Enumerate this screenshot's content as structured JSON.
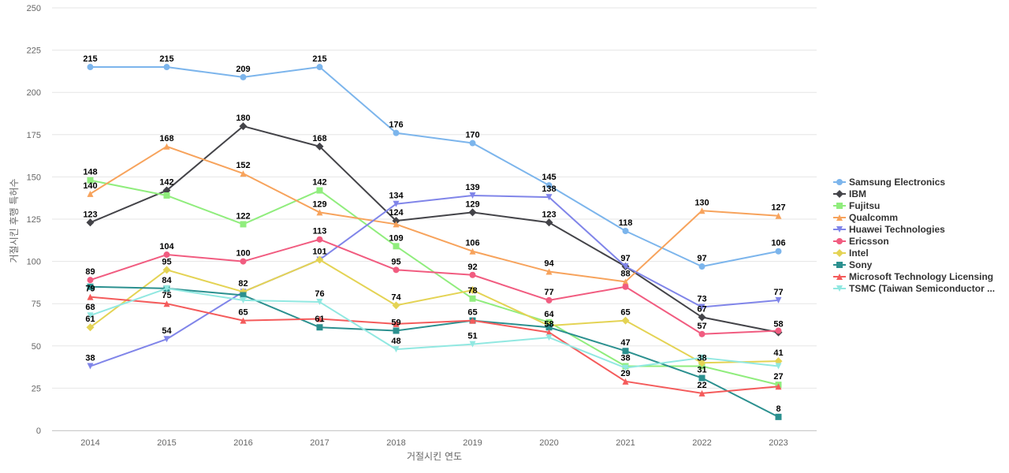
{
  "chart_data": {
    "type": "line",
    "title": "",
    "xlabel": "거절시킨 연도",
    "ylabel": "거절시킨 후행 특허수",
    "x": [
      "2014",
      "2015",
      "2016",
      "2017",
      "2018",
      "2019",
      "2020",
      "2021",
      "2022",
      "2023"
    ],
    "ylim": [
      0,
      250
    ],
    "yticks": [
      0,
      25,
      50,
      75,
      100,
      125,
      150,
      175,
      200,
      225,
      250
    ],
    "grid": true,
    "legend_position": "right",
    "series": [
      {
        "name": "Samsung Electronics",
        "color": "#7cb5ec",
        "marker": "circle",
        "values": [
          215,
          215,
          209,
          215,
          176,
          170,
          145,
          118,
          97,
          106
        ]
      },
      {
        "name": "IBM",
        "color": "#434348",
        "marker": "diamond",
        "values": [
          123,
          142,
          180,
          168,
          124,
          129,
          123,
          97,
          67,
          58
        ]
      },
      {
        "name": "Fujitsu",
        "color": "#90ed7d",
        "marker": "square",
        "values": [
          148,
          139,
          122,
          142,
          109,
          78,
          64,
          38,
          38,
          27
        ]
      },
      {
        "name": "Qualcomm",
        "color": "#f7a35c",
        "marker": "triangle",
        "values": [
          140,
          168,
          152,
          129,
          122,
          106,
          94,
          88,
          130,
          127
        ]
      },
      {
        "name": "Huawei Technologies",
        "color": "#8085e9",
        "marker": "triangle-down",
        "values": [
          38,
          54,
          82,
          101,
          134,
          139,
          138,
          97,
          73,
          77
        ]
      },
      {
        "name": "Ericsson",
        "color": "#f15c80",
        "marker": "circle",
        "values": [
          89,
          104,
          100,
          113,
          95,
          92,
          77,
          85,
          57,
          59
        ]
      },
      {
        "name": "Intel",
        "color": "#e4d354",
        "marker": "diamond",
        "values": [
          61,
          95,
          82,
          101,
          74,
          83,
          62,
          65,
          40,
          41
        ]
      },
      {
        "name": "Sony",
        "color": "#2b908f",
        "marker": "square",
        "values": [
          85,
          84,
          80,
          61,
          59,
          65,
          61,
          47,
          31,
          8
        ]
      },
      {
        "name": "Microsoft Technology Licensing",
        "color": "#f45b5b",
        "marker": "triangle",
        "values": [
          79,
          75,
          65,
          66,
          63,
          65,
          58,
          29,
          22,
          26
        ]
      },
      {
        "name": "TSMC (Taiwan Semiconductor ...",
        "color": "#91e8e1",
        "marker": "triangle-down",
        "values": [
          68,
          84,
          77,
          76,
          48,
          51,
          55,
          37,
          43,
          38
        ]
      }
    ],
    "data_labels": [
      {
        "x": "2014",
        "y": 215,
        "text": "215"
      },
      {
        "x": "2015",
        "y": 215,
        "text": "215"
      },
      {
        "x": "2016",
        "y": 209,
        "text": "209"
      },
      {
        "x": "2017",
        "y": 215,
        "text": "215"
      },
      {
        "x": "2018",
        "y": 176,
        "text": "176"
      },
      {
        "x": "2019",
        "y": 170,
        "text": "170"
      },
      {
        "x": "2020",
        "y": 145,
        "text": "145"
      },
      {
        "x": "2021",
        "y": 118,
        "text": "118"
      },
      {
        "x": "2022",
        "y": 97,
        "text": "97"
      },
      {
        "x": "2023",
        "y": 106,
        "text": "106"
      },
      {
        "x": "2014",
        "y": 148,
        "text": "148"
      },
      {
        "x": "2014",
        "y": 140,
        "text": "140"
      },
      {
        "x": "2014",
        "y": 123,
        "text": "123"
      },
      {
        "x": "2014",
        "y": 89,
        "text": "89"
      },
      {
        "x": "2014",
        "y": 79,
        "text": "79"
      },
      {
        "x": "2014",
        "y": 68,
        "text": "68"
      },
      {
        "x": "2014",
        "y": 61,
        "text": "61"
      },
      {
        "x": "2014",
        "y": 38,
        "text": "38"
      },
      {
        "x": "2015",
        "y": 168,
        "text": "168"
      },
      {
        "x": "2015",
        "y": 142,
        "text": "142"
      },
      {
        "x": "2015",
        "y": 104,
        "text": "104"
      },
      {
        "x": "2015",
        "y": 95,
        "text": "95"
      },
      {
        "x": "2015",
        "y": 84,
        "text": "84"
      },
      {
        "x": "2015",
        "y": 75,
        "text": "75"
      },
      {
        "x": "2015",
        "y": 54,
        "text": "54"
      },
      {
        "x": "2016",
        "y": 180,
        "text": "180"
      },
      {
        "x": "2016",
        "y": 152,
        "text": "152"
      },
      {
        "x": "2016",
        "y": 122,
        "text": "122"
      },
      {
        "x": "2016",
        "y": 100,
        "text": "100"
      },
      {
        "x": "2016",
        "y": 82,
        "text": "82"
      },
      {
        "x": "2016",
        "y": 65,
        "text": "65"
      },
      {
        "x": "2017",
        "y": 168,
        "text": "168"
      },
      {
        "x": "2017",
        "y": 142,
        "text": "142"
      },
      {
        "x": "2017",
        "y": 129,
        "text": "129"
      },
      {
        "x": "2017",
        "y": 113,
        "text": "113"
      },
      {
        "x": "2017",
        "y": 101,
        "text": "101"
      },
      {
        "x": "2017",
        "y": 76,
        "text": "76"
      },
      {
        "x": "2017",
        "y": 61,
        "text": "61"
      },
      {
        "x": "2018",
        "y": 134,
        "text": "134"
      },
      {
        "x": "2018",
        "y": 124,
        "text": "124"
      },
      {
        "x": "2018",
        "y": 109,
        "text": "109"
      },
      {
        "x": "2018",
        "y": 95,
        "text": "95"
      },
      {
        "x": "2018",
        "y": 74,
        "text": "74"
      },
      {
        "x": "2018",
        "y": 59,
        "text": "59"
      },
      {
        "x": "2018",
        "y": 48,
        "text": "48"
      },
      {
        "x": "2019",
        "y": 139,
        "text": "139"
      },
      {
        "x": "2019",
        "y": 129,
        "text": "129"
      },
      {
        "x": "2019",
        "y": 106,
        "text": "106"
      },
      {
        "x": "2019",
        "y": 92,
        "text": "92"
      },
      {
        "x": "2019",
        "y": 78,
        "text": "78"
      },
      {
        "x": "2019",
        "y": 65,
        "text": "65"
      },
      {
        "x": "2019",
        "y": 51,
        "text": "51"
      },
      {
        "x": "2020",
        "y": 138,
        "text": "138"
      },
      {
        "x": "2020",
        "y": 123,
        "text": "123"
      },
      {
        "x": "2020",
        "y": 94,
        "text": "94"
      },
      {
        "x": "2020",
        "y": 77,
        "text": "77"
      },
      {
        "x": "2020",
        "y": 64,
        "text": "64"
      },
      {
        "x": "2020",
        "y": 58,
        "text": "58"
      },
      {
        "x": "2021",
        "y": 97,
        "text": "97"
      },
      {
        "x": "2021",
        "y": 88,
        "text": "88"
      },
      {
        "x": "2021",
        "y": 65,
        "text": "65"
      },
      {
        "x": "2021",
        "y": 47,
        "text": "47"
      },
      {
        "x": "2021",
        "y": 38,
        "text": "38"
      },
      {
        "x": "2021",
        "y": 29,
        "text": "29"
      },
      {
        "x": "2022",
        "y": 130,
        "text": "130"
      },
      {
        "x": "2022",
        "y": 73,
        "text": "73"
      },
      {
        "x": "2022",
        "y": 67,
        "text": "67"
      },
      {
        "x": "2022",
        "y": 57,
        "text": "57"
      },
      {
        "x": "2022",
        "y": 38,
        "text": "38"
      },
      {
        "x": "2022",
        "y": 31,
        "text": "31"
      },
      {
        "x": "2022",
        "y": 22,
        "text": "22"
      },
      {
        "x": "2023",
        "y": 127,
        "text": "127"
      },
      {
        "x": "2023",
        "y": 77,
        "text": "77"
      },
      {
        "x": "2023",
        "y": 58,
        "text": "58"
      },
      {
        "x": "2023",
        "y": 41,
        "text": "41"
      },
      {
        "x": "2023",
        "y": 27,
        "text": "27"
      },
      {
        "x": "2023",
        "y": 8,
        "text": "8"
      }
    ]
  }
}
